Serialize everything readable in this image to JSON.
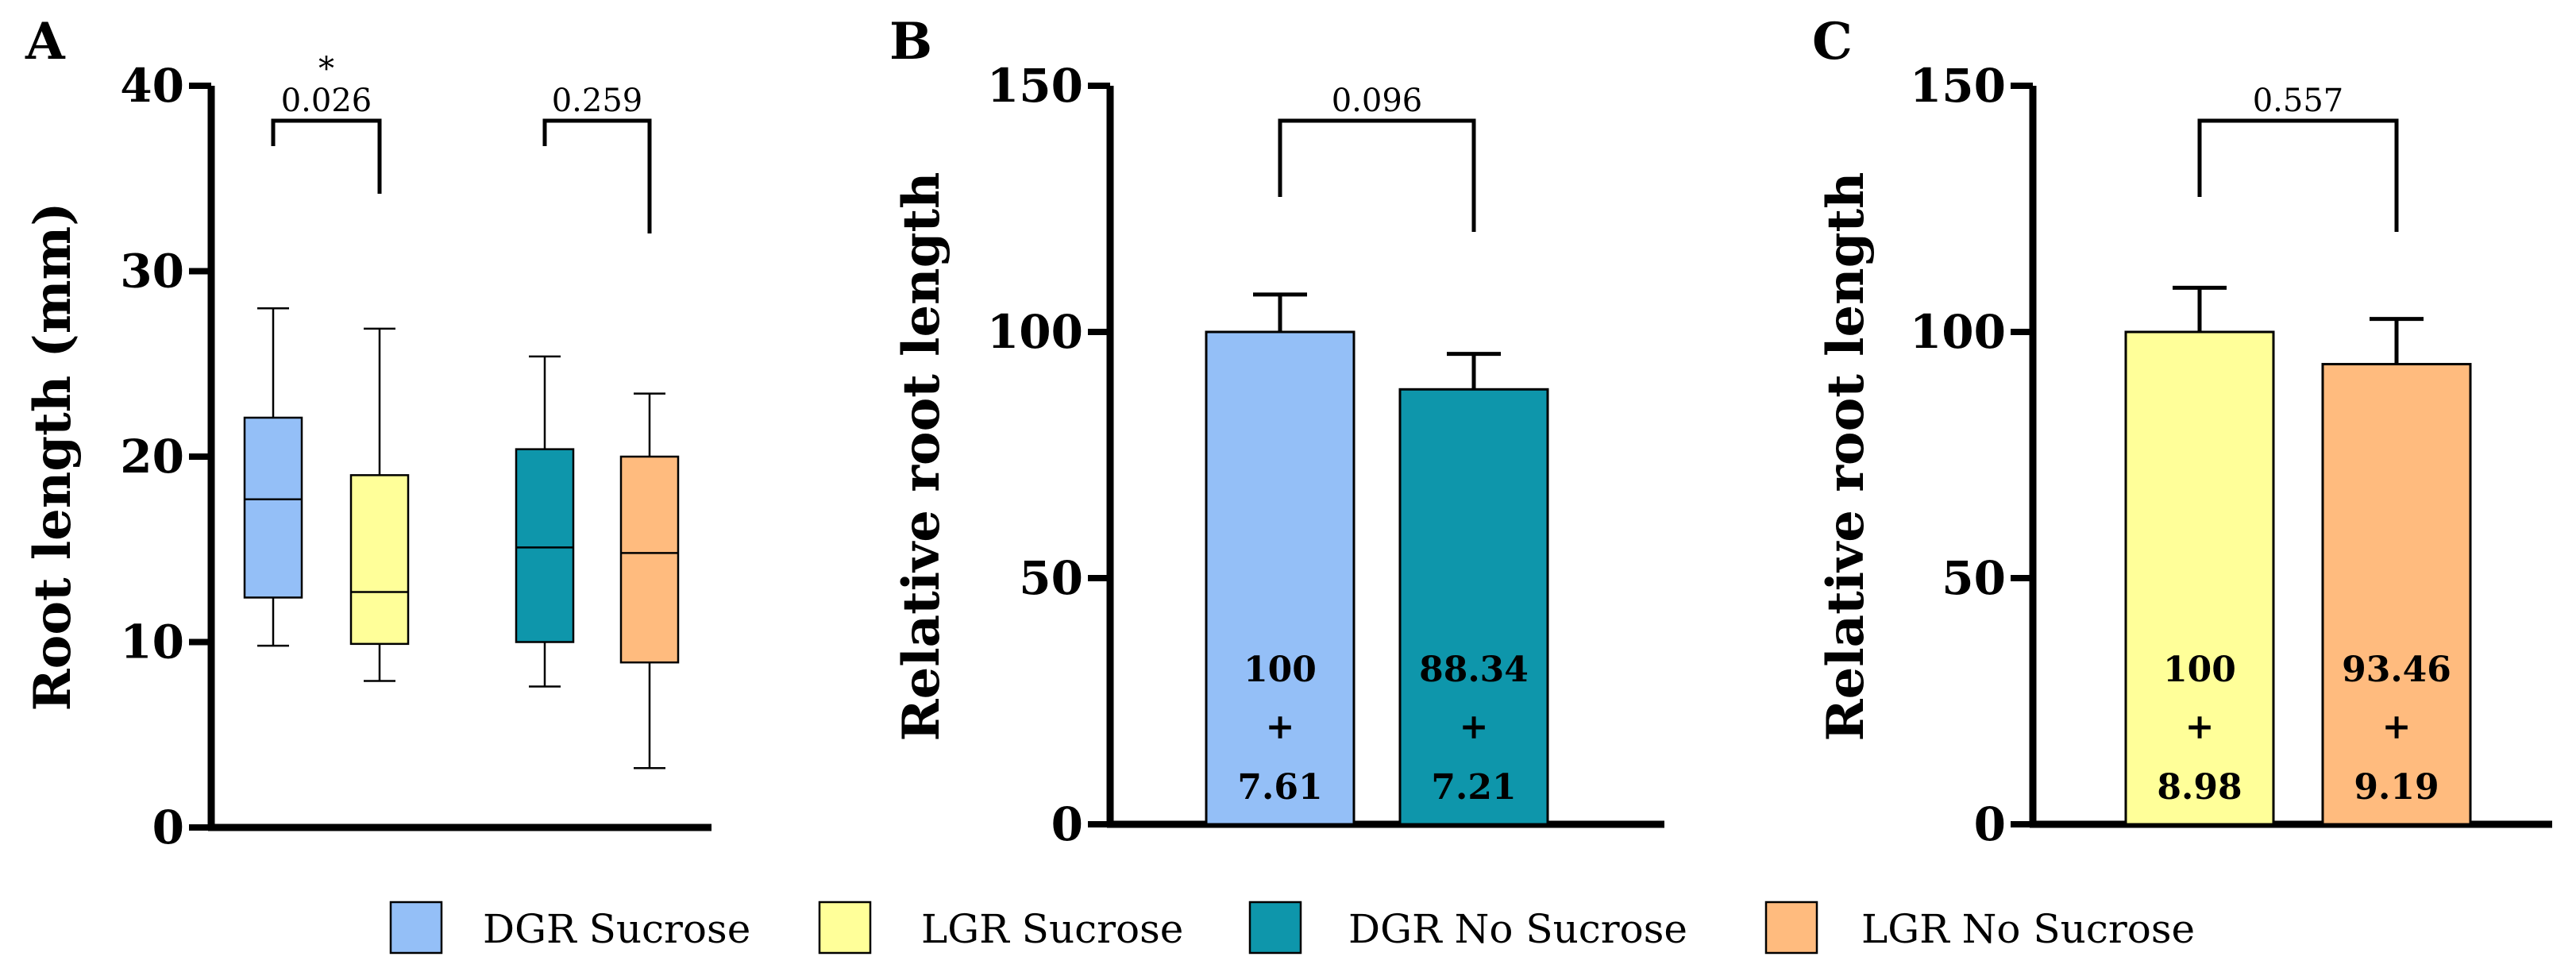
{
  "chart_data": [
    {
      "panel": "A",
      "type": "box",
      "ylabel": "Root length (mm)",
      "ylim": [
        0,
        40
      ],
      "yticks": [
        0,
        10,
        20,
        30,
        40
      ],
      "series": [
        {
          "name": "DGR Sucrose",
          "color": "#94BFF7",
          "min": 9.8,
          "q1": 12.4,
          "median": 17.7,
          "q3": 22.1,
          "max": 28.0
        },
        {
          "name": "LGR Sucrose",
          "color": "#FFFF99",
          "min": 7.9,
          "q1": 9.9,
          "median": 12.7,
          "q3": 19.0,
          "max": 26.9
        },
        {
          "name": "DGR No Sucrose",
          "color": "#0E96AB",
          "min": 7.6,
          "q1": 10.0,
          "median": 15.1,
          "q3": 20.4,
          "max": 25.4
        },
        {
          "name": "LGR No Sucrose",
          "color": "#FFBB7E",
          "min": 3.2,
          "q1": 8.9,
          "median": 14.8,
          "q3": 20.0,
          "max": 23.4
        }
      ],
      "comparisons": [
        {
          "groups": [
            0,
            1
          ],
          "p": "0.026",
          "star": "*"
        },
        {
          "groups": [
            2,
            3
          ],
          "p": "0.259",
          "star": ""
        }
      ]
    },
    {
      "panel": "B",
      "type": "bar",
      "ylabel": "Relative root length",
      "ylim": [
        0,
        150
      ],
      "yticks": [
        0,
        50,
        100,
        150
      ],
      "bars": [
        {
          "name": "DGR Sucrose",
          "color": "#94BFF7",
          "value": 100,
          "err": 7.61,
          "label_value": "100",
          "label_sign": "+",
          "label_err": "7.61"
        },
        {
          "name": "DGR No Sucrose",
          "color": "#0E96AB",
          "value": 88.34,
          "err": 7.21,
          "label_value": "88.34",
          "label_sign": "+",
          "label_err": "7.21"
        }
      ],
      "comparison": {
        "p": "0.096"
      }
    },
    {
      "panel": "C",
      "type": "bar",
      "ylabel": "Relative root length",
      "ylim": [
        0,
        150
      ],
      "yticks": [
        0,
        50,
        100,
        150
      ],
      "bars": [
        {
          "name": "LGR Sucrose",
          "color": "#FFFF99",
          "value": 100,
          "err": 8.98,
          "label_value": "100",
          "label_sign": "+",
          "label_err": "8.98"
        },
        {
          "name": "LGR No Sucrose",
          "color": "#FFBB7E",
          "value": 93.46,
          "err": 9.19,
          "label_value": "93.46",
          "label_sign": "+",
          "label_err": "9.19"
        }
      ],
      "comparison": {
        "p": "0.557"
      }
    }
  ],
  "legend": [
    {
      "label": "DGR Sucrose",
      "color": "#94BFF7"
    },
    {
      "label": "LGR Sucrose",
      "color": "#FFFF99"
    },
    {
      "label": "DGR No Sucrose",
      "color": "#0E96AB"
    },
    {
      "label": "LGR No Sucrose",
      "color": "#FFBB7E"
    }
  ]
}
